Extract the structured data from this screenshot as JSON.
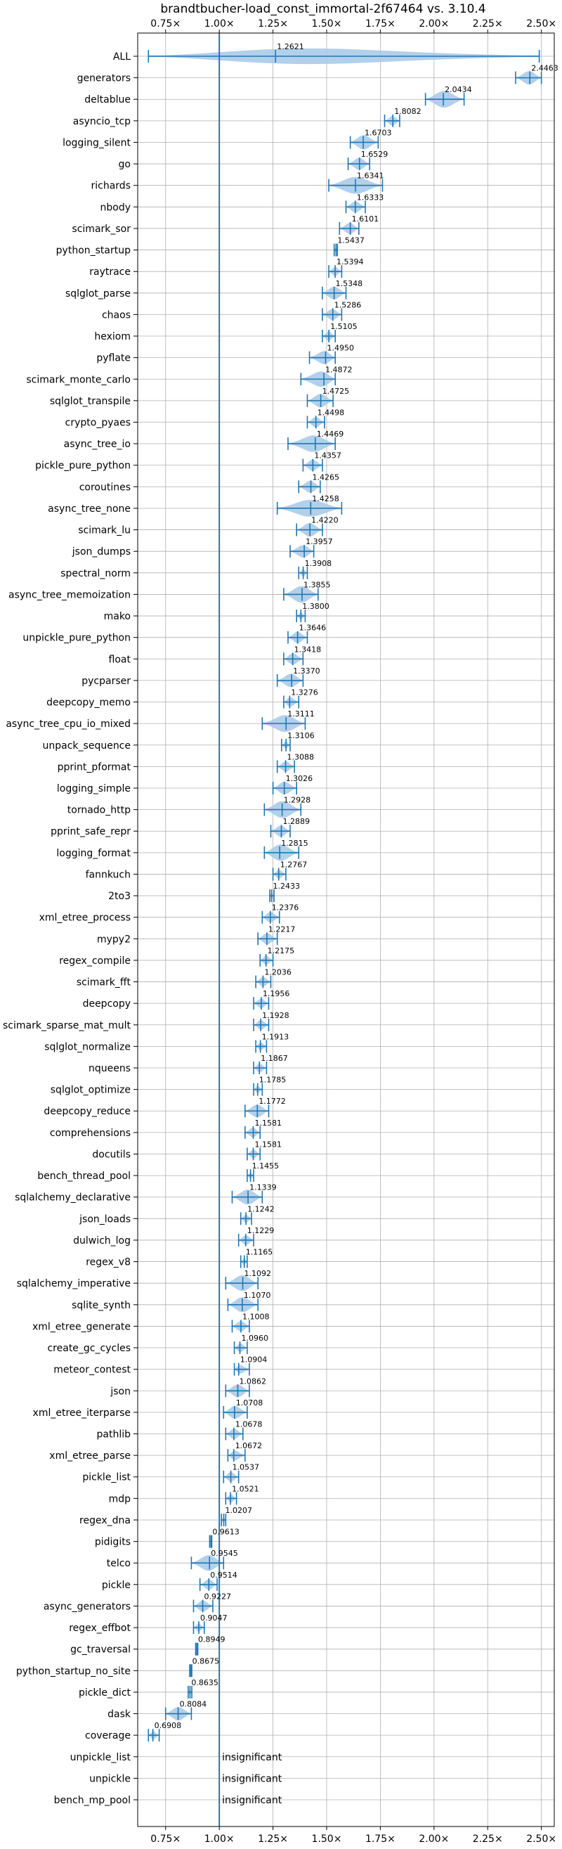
{
  "chart_data": {
    "type": "violin",
    "title": "brandtbucher-load_const_immortal-2f67464 vs. 3.10.4",
    "xlim": [
      0.62,
      2.56
    ],
    "xticks": [
      0.75,
      1.0,
      1.25,
      1.5,
      1.75,
      2.0,
      2.25,
      2.5
    ],
    "xtick_labels": [
      "0.75×",
      "1.00×",
      "1.25×",
      "1.50×",
      "1.75×",
      "2.00×",
      "2.25×",
      "2.50×"
    ],
    "reference_line": 1.0,
    "grid": true,
    "insignificant_label": "insignificant",
    "colors": {
      "accent": "#1f77b4",
      "violin": "#a6c8e6",
      "grid": "#b0b0b0"
    },
    "benchmarks": [
      {
        "name": "ALL",
        "value": 1.2621,
        "label": "1.2621",
        "lo": 0.67,
        "hi": 2.49
      },
      {
        "name": "generators",
        "value": 2.4463,
        "label": "2.4463",
        "lo": 2.38,
        "hi": 2.5
      },
      {
        "name": "deltablue",
        "value": 2.0434,
        "label": "2.0434",
        "lo": 1.96,
        "hi": 2.14
      },
      {
        "name": "asyncio_tcp",
        "value": 1.8082,
        "label": "1.8082",
        "lo": 1.77,
        "hi": 1.84
      },
      {
        "name": "logging_silent",
        "value": 1.6703,
        "label": "1.6703",
        "lo": 1.61,
        "hi": 1.74
      },
      {
        "name": "go",
        "value": 1.6529,
        "label": "1.6529",
        "lo": 1.6,
        "hi": 1.7
      },
      {
        "name": "richards",
        "value": 1.6341,
        "label": "1.6341",
        "lo": 1.51,
        "hi": 1.76
      },
      {
        "name": "nbody",
        "value": 1.6333,
        "label": "1.6333",
        "lo": 1.59,
        "hi": 1.68
      },
      {
        "name": "scimark_sor",
        "value": 1.6101,
        "label": "1.6101",
        "lo": 1.56,
        "hi": 1.65
      },
      {
        "name": "python_startup",
        "value": 1.5437,
        "label": "1.5437",
        "lo": 1.535,
        "hi": 1.55
      },
      {
        "name": "raytrace",
        "value": 1.5394,
        "label": "1.5394",
        "lo": 1.51,
        "hi": 1.57
      },
      {
        "name": "sqlglot_parse",
        "value": 1.5348,
        "label": "1.5348",
        "lo": 1.48,
        "hi": 1.59
      },
      {
        "name": "chaos",
        "value": 1.5286,
        "label": "1.5286",
        "lo": 1.48,
        "hi": 1.57
      },
      {
        "name": "hexiom",
        "value": 1.5105,
        "label": "1.5105",
        "lo": 1.48,
        "hi": 1.54
      },
      {
        "name": "pyflate",
        "value": 1.495,
        "label": "1.4950",
        "lo": 1.42,
        "hi": 1.54
      },
      {
        "name": "scimark_monte_carlo",
        "value": 1.4872,
        "label": "1.4872",
        "lo": 1.38,
        "hi": 1.54
      },
      {
        "name": "sqlglot_transpile",
        "value": 1.4725,
        "label": "1.4725",
        "lo": 1.41,
        "hi": 1.53
      },
      {
        "name": "crypto_pyaes",
        "value": 1.4498,
        "label": "1.4498",
        "lo": 1.41,
        "hi": 1.49
      },
      {
        "name": "async_tree_io",
        "value": 1.4469,
        "label": "1.4469",
        "lo": 1.32,
        "hi": 1.54
      },
      {
        "name": "pickle_pure_python",
        "value": 1.4357,
        "label": "1.4357",
        "lo": 1.39,
        "hi": 1.48
      },
      {
        "name": "coroutines",
        "value": 1.4265,
        "label": "1.4265",
        "lo": 1.37,
        "hi": 1.47
      },
      {
        "name": "async_tree_none",
        "value": 1.4258,
        "label": "1.4258",
        "lo": 1.27,
        "hi": 1.57
      },
      {
        "name": "scimark_lu",
        "value": 1.422,
        "label": "1.4220",
        "lo": 1.36,
        "hi": 1.48
      },
      {
        "name": "json_dumps",
        "value": 1.3957,
        "label": "1.3957",
        "lo": 1.33,
        "hi": 1.44
      },
      {
        "name": "spectral_norm",
        "value": 1.3908,
        "label": "1.3908",
        "lo": 1.37,
        "hi": 1.41
      },
      {
        "name": "async_tree_memoization",
        "value": 1.3855,
        "label": "1.3855",
        "lo": 1.3,
        "hi": 1.46
      },
      {
        "name": "mako",
        "value": 1.38,
        "label": "1.3800",
        "lo": 1.36,
        "hi": 1.4
      },
      {
        "name": "unpickle_pure_python",
        "value": 1.3646,
        "label": "1.3646",
        "lo": 1.32,
        "hi": 1.41
      },
      {
        "name": "float",
        "value": 1.3418,
        "label": "1.3418",
        "lo": 1.3,
        "hi": 1.39
      },
      {
        "name": "pycparser",
        "value": 1.337,
        "label": "1.3370",
        "lo": 1.27,
        "hi": 1.39
      },
      {
        "name": "deepcopy_memo",
        "value": 1.3276,
        "label": "1.3276",
        "lo": 1.3,
        "hi": 1.37
      },
      {
        "name": "async_tree_cpu_io_mixed",
        "value": 1.3111,
        "label": "1.3111",
        "lo": 1.2,
        "hi": 1.4
      },
      {
        "name": "unpack_sequence",
        "value": 1.3106,
        "label": "1.3106",
        "lo": 1.29,
        "hi": 1.33
      },
      {
        "name": "pprint_pformat",
        "value": 1.3088,
        "label": "1.3088",
        "lo": 1.27,
        "hi": 1.35
      },
      {
        "name": "logging_simple",
        "value": 1.3026,
        "label": "1.3026",
        "lo": 1.25,
        "hi": 1.36
      },
      {
        "name": "tornado_http",
        "value": 1.2928,
        "label": "1.2928",
        "lo": 1.21,
        "hi": 1.38
      },
      {
        "name": "pprint_safe_repr",
        "value": 1.2889,
        "label": "1.2889",
        "lo": 1.24,
        "hi": 1.33
      },
      {
        "name": "logging_format",
        "value": 1.2815,
        "label": "1.2815",
        "lo": 1.21,
        "hi": 1.37
      },
      {
        "name": "fannkuch",
        "value": 1.2767,
        "label": "1.2767",
        "lo": 1.25,
        "hi": 1.31
      },
      {
        "name": "2to3",
        "value": 1.2433,
        "label": "1.2433",
        "lo": 1.235,
        "hi": 1.255
      },
      {
        "name": "xml_etree_process",
        "value": 1.2376,
        "label": "1.2376",
        "lo": 1.2,
        "hi": 1.28
      },
      {
        "name": "mypy2",
        "value": 1.2217,
        "label": "1.2217",
        "lo": 1.18,
        "hi": 1.27
      },
      {
        "name": "regex_compile",
        "value": 1.2175,
        "label": "1.2175",
        "lo": 1.19,
        "hi": 1.25
      },
      {
        "name": "scimark_fft",
        "value": 1.2036,
        "label": "1.2036",
        "lo": 1.17,
        "hi": 1.24
      },
      {
        "name": "deepcopy",
        "value": 1.1956,
        "label": "1.1956",
        "lo": 1.16,
        "hi": 1.23
      },
      {
        "name": "scimark_sparse_mat_mult",
        "value": 1.1928,
        "label": "1.1928",
        "lo": 1.16,
        "hi": 1.23
      },
      {
        "name": "sqlglot_normalize",
        "value": 1.1913,
        "label": "1.1913",
        "lo": 1.17,
        "hi": 1.22
      },
      {
        "name": "nqueens",
        "value": 1.1867,
        "label": "1.1867",
        "lo": 1.16,
        "hi": 1.22
      },
      {
        "name": "sqlglot_optimize",
        "value": 1.1785,
        "label": "1.1785",
        "lo": 1.16,
        "hi": 1.2
      },
      {
        "name": "deepcopy_reduce",
        "value": 1.1772,
        "label": "1.1772",
        "lo": 1.12,
        "hi": 1.23
      },
      {
        "name": "comprehensions",
        "value": 1.1581,
        "label": "1.1581",
        "lo": 1.12,
        "hi": 1.19
      },
      {
        "name": "docutils",
        "value": 1.1581,
        "label": "1.1581",
        "lo": 1.13,
        "hi": 1.19
      },
      {
        "name": "bench_thread_pool",
        "value": 1.1455,
        "label": "1.1455",
        "lo": 1.13,
        "hi": 1.16
      },
      {
        "name": "sqlalchemy_declarative",
        "value": 1.1339,
        "label": "1.1339",
        "lo": 1.06,
        "hi": 1.2
      },
      {
        "name": "json_loads",
        "value": 1.1242,
        "label": "1.1242",
        "lo": 1.1,
        "hi": 1.15
      },
      {
        "name": "dulwich_log",
        "value": 1.1229,
        "label": "1.1229",
        "lo": 1.09,
        "hi": 1.16
      },
      {
        "name": "regex_v8",
        "value": 1.1165,
        "label": "1.1165",
        "lo": 1.1,
        "hi": 1.13
      },
      {
        "name": "sqlalchemy_imperative",
        "value": 1.1092,
        "label": "1.1092",
        "lo": 1.03,
        "hi": 1.18
      },
      {
        "name": "sqlite_synth",
        "value": 1.107,
        "label": "1.1070",
        "lo": 1.04,
        "hi": 1.18
      },
      {
        "name": "xml_etree_generate",
        "value": 1.1008,
        "label": "1.1008",
        "lo": 1.06,
        "hi": 1.14
      },
      {
        "name": "create_gc_cycles",
        "value": 1.096,
        "label": "1.0960",
        "lo": 1.07,
        "hi": 1.13
      },
      {
        "name": "meteor_contest",
        "value": 1.0904,
        "label": "1.0904",
        "lo": 1.07,
        "hi": 1.14
      },
      {
        "name": "json",
        "value": 1.0862,
        "label": "1.0862",
        "lo": 1.03,
        "hi": 1.14
      },
      {
        "name": "xml_etree_iterparse",
        "value": 1.0708,
        "label": "1.0708",
        "lo": 1.02,
        "hi": 1.13
      },
      {
        "name": "pathlib",
        "value": 1.0678,
        "label": "1.0678",
        "lo": 1.03,
        "hi": 1.11
      },
      {
        "name": "xml_etree_parse",
        "value": 1.0672,
        "label": "1.0672",
        "lo": 1.04,
        "hi": 1.12
      },
      {
        "name": "pickle_list",
        "value": 1.0537,
        "label": "1.0537",
        "lo": 1.02,
        "hi": 1.09
      },
      {
        "name": "mdp",
        "value": 1.0521,
        "label": "1.0521",
        "lo": 1.03,
        "hi": 1.08
      },
      {
        "name": "regex_dna",
        "value": 1.0207,
        "label": "1.0207",
        "lo": 1.01,
        "hi": 1.03
      },
      {
        "name": "pidigits",
        "value": 0.9613,
        "label": "0.9613",
        "lo": 0.955,
        "hi": 0.965
      },
      {
        "name": "telco",
        "value": 0.9545,
        "label": "0.9545",
        "lo": 0.87,
        "hi": 1.02
      },
      {
        "name": "pickle",
        "value": 0.9514,
        "label": "0.9514",
        "lo": 0.91,
        "hi": 0.99
      },
      {
        "name": "async_generators",
        "value": 0.9227,
        "label": "0.9227",
        "lo": 0.88,
        "hi": 0.97
      },
      {
        "name": "regex_effbot",
        "value": 0.9047,
        "label": "0.9047",
        "lo": 0.88,
        "hi": 0.93
      },
      {
        "name": "gc_traversal",
        "value": 0.8949,
        "label": "0.8949",
        "lo": 0.89,
        "hi": 0.9
      },
      {
        "name": "python_startup_no_site",
        "value": 0.8675,
        "label": "0.8675",
        "lo": 0.862,
        "hi": 0.872
      },
      {
        "name": "pickle_dict",
        "value": 0.8635,
        "label": "0.8635",
        "lo": 0.855,
        "hi": 0.872
      },
      {
        "name": "dask",
        "value": 0.8084,
        "label": "0.8084",
        "lo": 0.75,
        "hi": 0.87
      },
      {
        "name": "coverage",
        "value": 0.6908,
        "label": "0.6908",
        "lo": 0.67,
        "hi": 0.72
      },
      {
        "name": "unpickle_list",
        "value": null,
        "label": "",
        "insignificant": true
      },
      {
        "name": "unpickle",
        "value": null,
        "label": "",
        "insignificant": true
      },
      {
        "name": "bench_mp_pool",
        "value": null,
        "label": "",
        "insignificant": true
      }
    ]
  }
}
